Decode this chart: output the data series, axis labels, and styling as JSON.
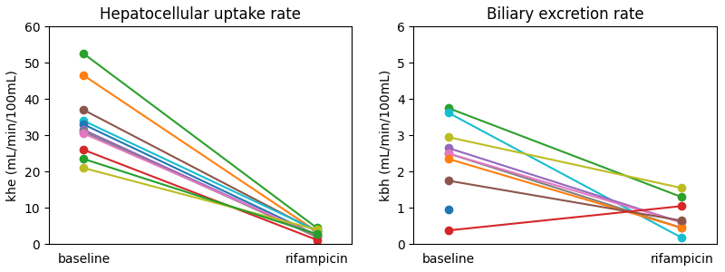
{
  "left_title": "Hepatocellular uptake rate",
  "right_title": "Biliary excretion rate",
  "left_ylabel": "khe (mL/min/100mL)",
  "right_ylabel": "kbh (mL/min/100mL)",
  "xlabel": [
    "baseline",
    "rifampicin"
  ],
  "left_ylim": [
    0,
    60
  ],
  "right_ylim": [
    0,
    6
  ],
  "left_yticks": [
    0,
    10,
    20,
    30,
    40,
    50,
    60
  ],
  "right_yticks": [
    0,
    1,
    2,
    3,
    4,
    5,
    6
  ],
  "subjects_khe": [
    {
      "color": "#2ca02c",
      "baseline": 52.5,
      "rifampicin": 4.5
    },
    {
      "color": "#ff7f0e",
      "baseline": 46.5,
      "rifampicin": 3.5
    },
    {
      "color": "#8c564b",
      "baseline": 37.0,
      "rifampicin": 3.5
    },
    {
      "color": "#17becf",
      "baseline": 34.0,
      "rifampicin": 3.8
    },
    {
      "color": "#1f77b4",
      "baseline": 33.0,
      "rifampicin": 2.5
    },
    {
      "color": "#9467bd",
      "baseline": 31.5,
      "rifampicin": 2.2
    },
    {
      "color": "#7f7f7f",
      "baseline": 31.0,
      "rifampicin": 2.0
    },
    {
      "color": "#e377c2",
      "baseline": 30.5,
      "rifampicin": 2.5
    },
    {
      "color": "#d62728",
      "baseline": 26.0,
      "rifampicin": 1.2
    },
    {
      "color": "#bcbd22",
      "baseline": 21.0,
      "rifampicin": 4.0
    },
    {
      "color": "#23a02c",
      "baseline": 23.5,
      "rifampicin": 2.8
    }
  ],
  "subjects_kbh": [
    {
      "color": "#2ca02c",
      "baseline": 3.75,
      "rifampicin": 1.3,
      "has_rif": true
    },
    {
      "color": "#17becf",
      "baseline": 3.62,
      "rifampicin": 0.18,
      "has_rif": true
    },
    {
      "color": "#bcbd22",
      "baseline": 2.95,
      "rifampicin": 1.55,
      "has_rif": true
    },
    {
      "color": "#9467bd",
      "baseline": 2.65,
      "rifampicin": 0.6,
      "has_rif": true
    },
    {
      "color": "#7f7f7f",
      "baseline": 2.5,
      "rifampicin": 0.45,
      "has_rif": true
    },
    {
      "color": "#e377c2",
      "baseline": 2.5,
      "rifampicin": 0.6,
      "has_rif": true
    },
    {
      "color": "#ff7f0e",
      "baseline": 2.35,
      "rifampicin": 0.45,
      "has_rif": true
    },
    {
      "color": "#8c564b",
      "baseline": 1.75,
      "rifampicin": 0.65,
      "has_rif": true
    },
    {
      "color": "#1f77b4",
      "baseline": 0.95,
      "rifampicin": null,
      "has_rif": false
    },
    {
      "color": "#d62728",
      "baseline": 0.38,
      "rifampicin": 1.05,
      "has_rif": true
    }
  ],
  "marker_size": 7,
  "linewidth": 1.5,
  "figsize": [
    8.0,
    3.0
  ],
  "dpi": 100
}
